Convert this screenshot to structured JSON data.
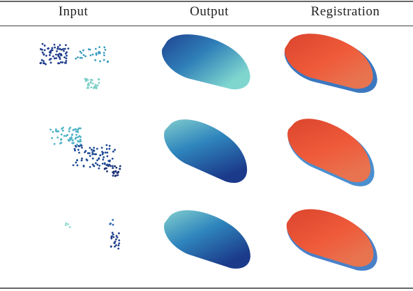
{
  "table": {
    "columns": [
      "Input",
      "Output",
      "Registration"
    ]
  }
}
